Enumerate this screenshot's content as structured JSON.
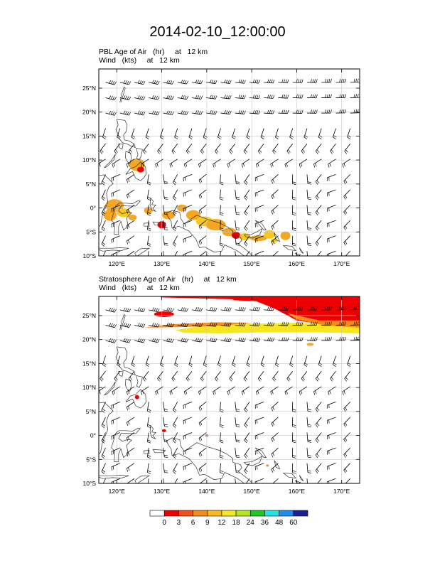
{
  "title": "2014-02-10_12:00:00",
  "panels": [
    {
      "subtitle_line1": "PBL Age of Air   (hr)     at   12 km",
      "subtitle_line2": "Wind   (kts)     at   12 km"
    },
    {
      "subtitle_line1": "Stratosphere Age of Air   (hr)     at   12 km",
      "subtitle_line2": "Wind   (kts)     at   12 km"
    }
  ],
  "axes": {
    "lat_ticks": [
      "25°N",
      "20°N",
      "15°N",
      "10°N",
      "5°N",
      "0°",
      "5°S",
      "10°S"
    ],
    "lat_values": [
      25,
      20,
      15,
      10,
      5,
      0,
      -5,
      -10
    ],
    "lon_ticks": [
      "120°E",
      "130°E",
      "140°E",
      "150°E",
      "160°E",
      "170°E"
    ],
    "lon_values": [
      120,
      130,
      140,
      150,
      160,
      170
    ],
    "lon_range": [
      116,
      174
    ],
    "lat_range": [
      -10,
      29
    ]
  },
  "colorbar": {
    "labels": [
      "0",
      "3",
      "6",
      "9",
      "12",
      "18",
      "24",
      "36",
      "48",
      "60"
    ],
    "colors": [
      "#ffffff",
      "#ee0000",
      "#f2501a",
      "#f58a1e",
      "#f9b91e",
      "#f5e61e",
      "#b4e61e",
      "#1ec81e",
      "#1ee6e6",
      "#1e8cf0",
      "#1e1e96"
    ]
  },
  "colors": {
    "pbl_orange": "#f5a623",
    "pbl_yellow": "#f9c81e",
    "strat_red": "#ee0000",
    "strat_orange": "#f58a1e",
    "strat_yellow": "#f5e61e"
  }
}
